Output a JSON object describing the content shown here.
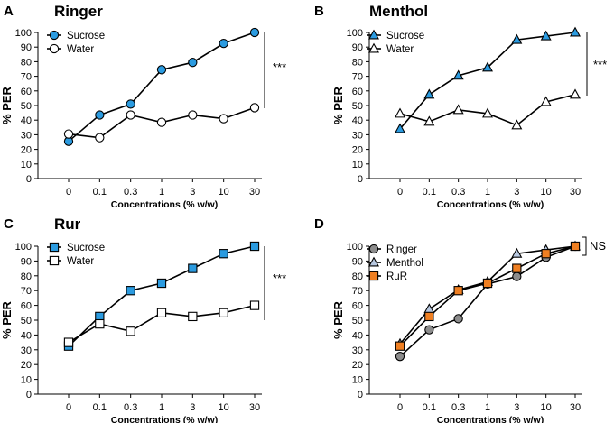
{
  "colors": {
    "blue": "#2b9be0",
    "gray": "#8c8c8c",
    "lightblue": "#b8c8e0",
    "orange": "#ef7f22",
    "white": "#ffffff",
    "line": "#000000"
  },
  "chart_data": [
    {
      "letter": "A",
      "title": "Ringer",
      "type": "line",
      "categories": [
        "0",
        "0.1",
        "0.3",
        "1",
        "3",
        "10",
        "30"
      ],
      "xlabel": "Concentrations (% w/w)",
      "ylabel": "% PER",
      "ylim": [
        0,
        100
      ],
      "yticks": [
        "0",
        "10",
        "20",
        "30",
        "40",
        "50",
        "60",
        "70",
        "80",
        "90",
        "100"
      ],
      "significance": "***",
      "series": [
        {
          "name": "Sucrose",
          "marker": "circle",
          "fill": "blue",
          "values": [
            25.5,
            43.5,
            51,
            74.5,
            79.5,
            92.5,
            100
          ]
        },
        {
          "name": "Water",
          "marker": "circle",
          "fill": "white",
          "values": [
            30.5,
            28,
            43.5,
            38.5,
            43.5,
            41,
            48.5
          ]
        }
      ]
    },
    {
      "letter": "B",
      "title": "Menthol",
      "type": "line",
      "categories": [
        "0",
        "0.1",
        "0.3",
        "1",
        "3",
        "10",
        "30"
      ],
      "xlabel": "Concentrations (% w/w)",
      "ylabel": "% PER",
      "ylim": [
        0,
        100
      ],
      "yticks": [
        "0",
        "10",
        "20",
        "30",
        "40",
        "50",
        "60",
        "70",
        "80",
        "90",
        "100"
      ],
      "significance": "***",
      "series": [
        {
          "name": "Sucrose",
          "marker": "triangle",
          "fill": "blue",
          "values": [
            34,
            57.5,
            70.5,
            76,
            95,
            97.5,
            100
          ]
        },
        {
          "name": "Water",
          "marker": "triangle",
          "fill": "white",
          "values": [
            44.5,
            39,
            47,
            44.5,
            36.5,
            52.5,
            57.5
          ]
        }
      ]
    },
    {
      "letter": "C",
      "title": "Rur",
      "type": "line",
      "categories": [
        "0",
        "0.1",
        "0.3",
        "1",
        "3",
        "10",
        "30"
      ],
      "xlabel": "Concentrations (% w/w)",
      "ylabel": "% PER",
      "ylim": [
        0,
        100
      ],
      "yticks": [
        "0",
        "10",
        "20",
        "30",
        "40",
        "50",
        "60",
        "70",
        "80",
        "90",
        "100"
      ],
      "significance": "***",
      "series": [
        {
          "name": "Sucrose",
          "marker": "square",
          "fill": "blue",
          "values": [
            32.5,
            52.5,
            70,
            75,
            85,
            95,
            100
          ]
        },
        {
          "name": "Water",
          "marker": "square",
          "fill": "white",
          "values": [
            35,
            47.5,
            42.5,
            55,
            52.5,
            55,
            60
          ]
        }
      ]
    },
    {
      "letter": "D",
      "title": "",
      "type": "line",
      "categories": [
        "0",
        "0.1",
        "0.3",
        "1",
        "3",
        "10",
        "30"
      ],
      "xlabel": "Concentrations (% w/w)",
      "ylabel": "% PER",
      "ylim": [
        0,
        100
      ],
      "yticks": [
        "0",
        "10",
        "20",
        "30",
        "40",
        "50",
        "60",
        "70",
        "80",
        "90",
        "100"
      ],
      "significance": "NS",
      "series": [
        {
          "name": "Ringer",
          "marker": "circle",
          "fill": "gray",
          "values": [
            25.5,
            43.5,
            51,
            74.5,
            79.5,
            92.5,
            100
          ]
        },
        {
          "name": "Menthol",
          "marker": "triangle",
          "fill": "lightblue",
          "values": [
            34,
            57.5,
            70.5,
            76,
            95,
            97.5,
            100
          ]
        },
        {
          "name": "RuR",
          "marker": "square",
          "fill": "orange",
          "values": [
            32.5,
            52.5,
            70,
            75,
            85,
            95,
            100
          ]
        }
      ]
    }
  ]
}
